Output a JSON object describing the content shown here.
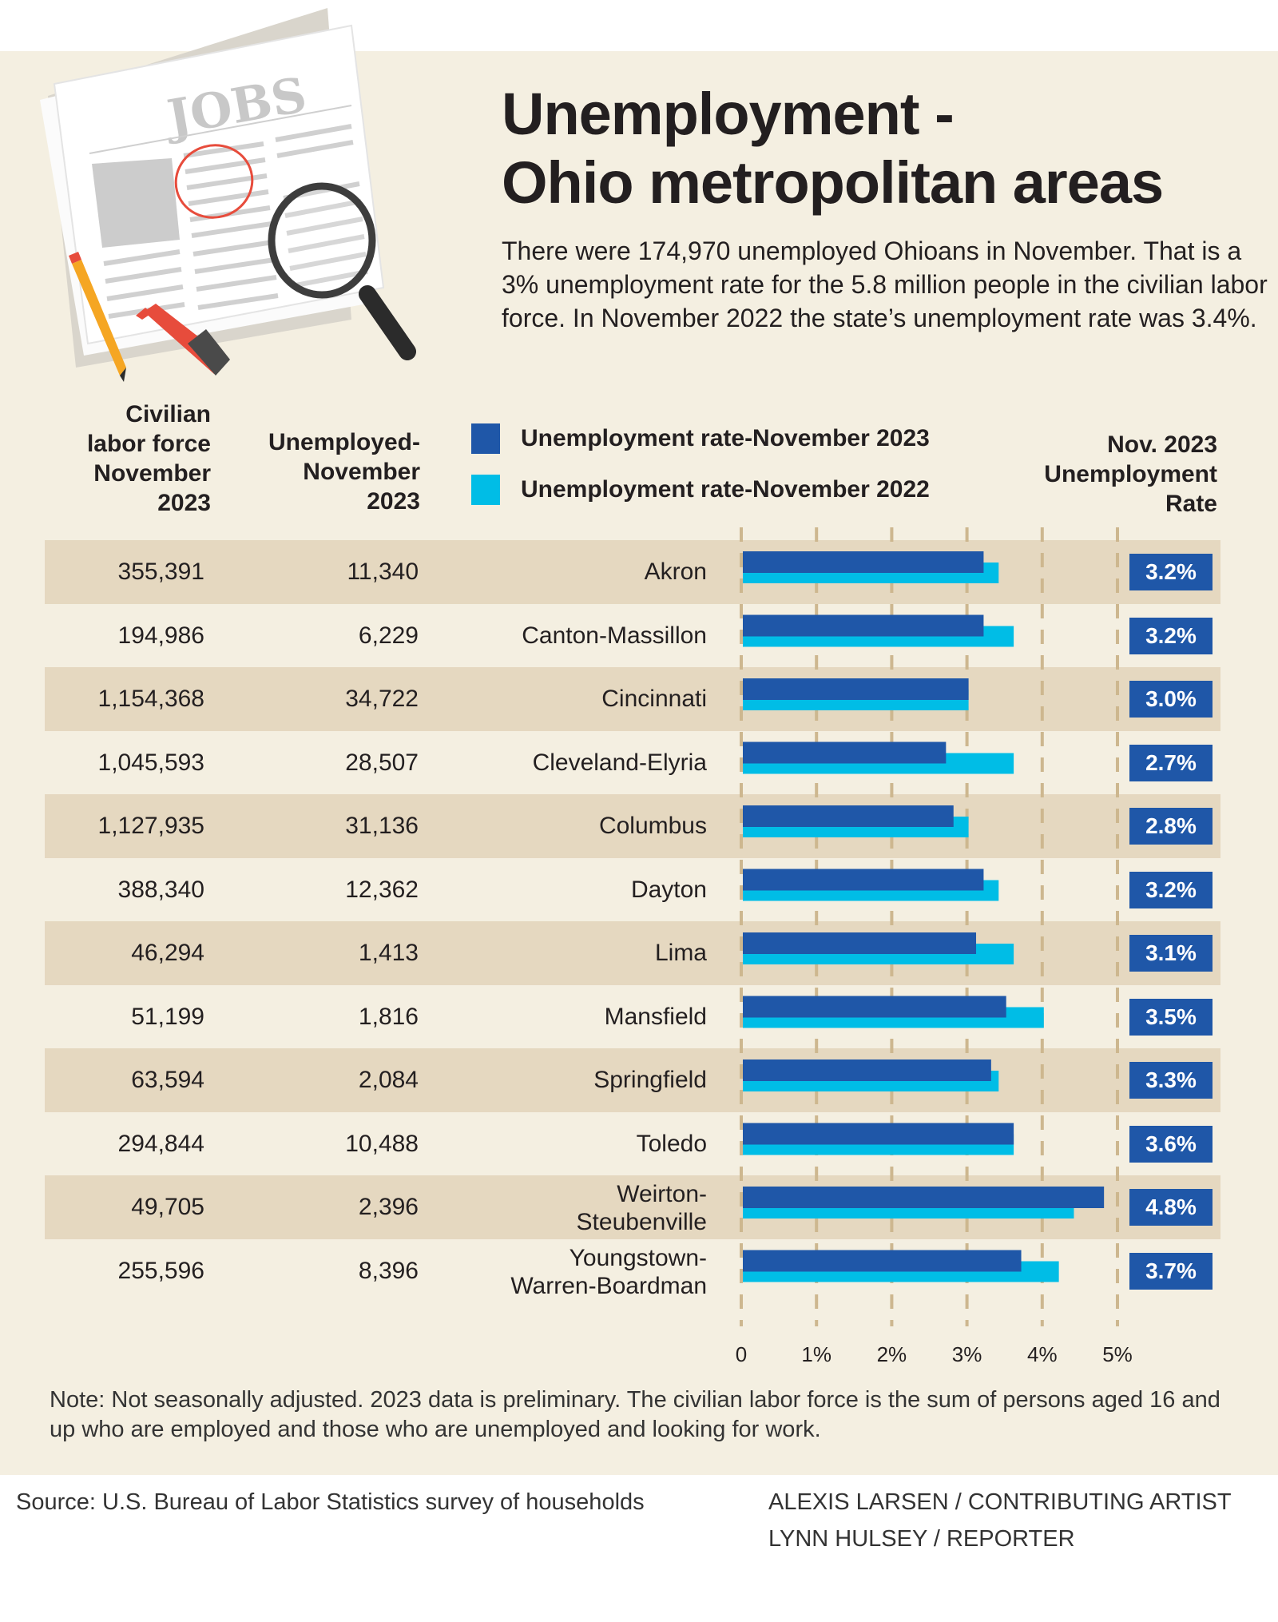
{
  "header": {
    "title_line1": "Unemployment -",
    "title_line2": "Ohio metropolitan areas",
    "intro": "There were 174,970 unemployed Ohioans in November. That is a 3%  unemployment rate for the 5.8 million people in the civilian labor force. In November 2022 the state’s unemployment rate was 3.4%."
  },
  "illustration": {
    "headline": "JOBS",
    "icons": [
      "newspaper-icon",
      "magnifying-glass-icon",
      "pencil-icon",
      "marker-icon"
    ]
  },
  "columns": {
    "labor_force": [
      "Civilian",
      "labor force",
      "November",
      "2023"
    ],
    "unemployed": [
      "Unemployed-",
      "November",
      "2023"
    ],
    "rate": [
      "Nov. 2023",
      "Unemployment",
      "Rate"
    ]
  },
  "colors": {
    "series_2023": "#1f57a8",
    "series_2022": "#00bde6",
    "row_shade": "#e5d8c0",
    "background": "#f4efe1",
    "gridline": "#cdb78f"
  },
  "chart_data": {
    "type": "bar",
    "orientation": "horizontal",
    "title": "Unemployment - Ohio metropolitan areas",
    "xlabel": "",
    "ylabel": "",
    "xlim": [
      0,
      5
    ],
    "x_ticks": [
      "0",
      "1%",
      "2%",
      "3%",
      "4%",
      "5%"
    ],
    "grid": true,
    "legend": "top",
    "categories": [
      "Akron",
      "Canton-Massillon",
      "Cincinnati",
      "Cleveland-Elyria",
      "Columbus",
      "Dayton",
      "Lima",
      "Mansfield",
      "Springfield",
      "Toledo",
      "Weirton-Steubenville",
      "Youngstown-Warren-Boardman"
    ],
    "category_lines": [
      [
        "Akron"
      ],
      [
        "Canton-Massillon"
      ],
      [
        "Cincinnati"
      ],
      [
        "Cleveland-Elyria"
      ],
      [
        "Columbus"
      ],
      [
        "Dayton"
      ],
      [
        "Lima"
      ],
      [
        "Mansfield"
      ],
      [
        "Springfield"
      ],
      [
        "Toledo"
      ],
      [
        "Weirton-",
        "Steubenville"
      ],
      [
        "Youngstown-",
        "Warren-Boardman"
      ]
    ],
    "series": [
      {
        "name": "Unemployment rate-November 2023",
        "values": [
          3.2,
          3.2,
          3.0,
          2.7,
          2.8,
          3.2,
          3.1,
          3.5,
          3.3,
          3.6,
          4.8,
          3.7
        ]
      },
      {
        "name": "Unemployment rate-November 2022",
        "values": [
          3.4,
          3.6,
          3.0,
          3.6,
          3.0,
          3.4,
          3.6,
          4.0,
          3.4,
          3.6,
          4.4,
          4.2
        ]
      }
    ],
    "rate_labels": [
      "3.2%",
      "3.2%",
      "3.0%",
      "2.7%",
      "2.8%",
      "3.2%",
      "3.1%",
      "3.5%",
      "3.3%",
      "3.6%",
      "4.8%",
      "3.7%"
    ],
    "labor_force": [
      "355,391",
      "194,986",
      "1,154,368",
      "1,045,593",
      "1,127,935",
      "388,340",
      "46,294",
      "51,199",
      "63,594",
      "294,844",
      "49,705",
      "255,596"
    ],
    "unemployed": [
      "11,340",
      "6,229",
      "34,722",
      "28,507",
      "31,136",
      "12,362",
      "1,413",
      "1,816",
      "2,084",
      "10,488",
      "2,396",
      "8,396"
    ]
  },
  "note": "Note: Not seasonally adjusted. 2023 data is preliminary. The civilian labor force is the sum of persons aged 16 and up who are employed and those who are unemployed and looking for work.",
  "footer": {
    "source": "Source: U.S. Bureau of Labor Statistics survey of households",
    "credit1": "ALEXIS LARSEN / CONTRIBUTING ARTIST",
    "credit2": "LYNN HULSEY / REPORTER"
  }
}
